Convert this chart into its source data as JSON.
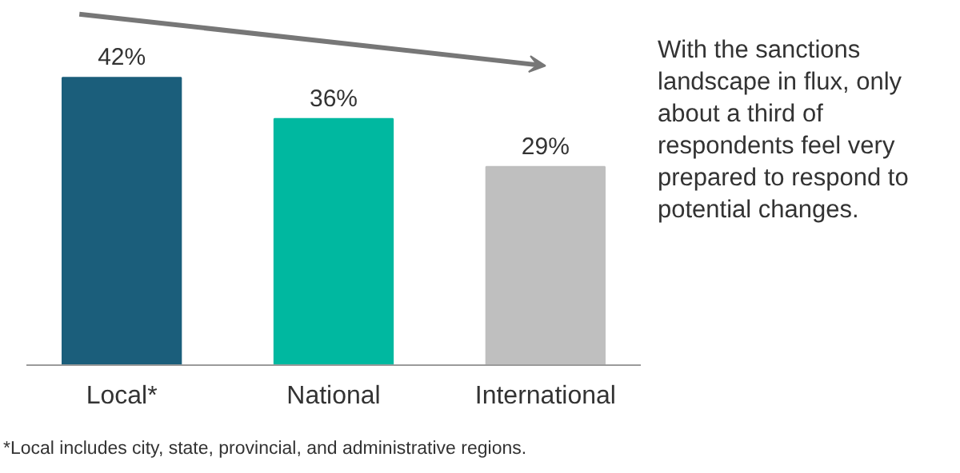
{
  "chart_data": {
    "type": "bar",
    "categories": [
      "Local*",
      "National",
      "International"
    ],
    "values": [
      42,
      36,
      29
    ],
    "colors": [
      "#1b5e7b",
      "#00b8a0",
      "#bfbfbf"
    ],
    "value_labels": [
      "42%",
      "36%",
      "29%"
    ],
    "grid": false,
    "annotations": [
      "With the sanctions landscape in flux, only about a third of respondents feel very prepared to respond to potential changes.",
      "*Local includes city, state, provincial, and administrative regions."
    ]
  }
}
